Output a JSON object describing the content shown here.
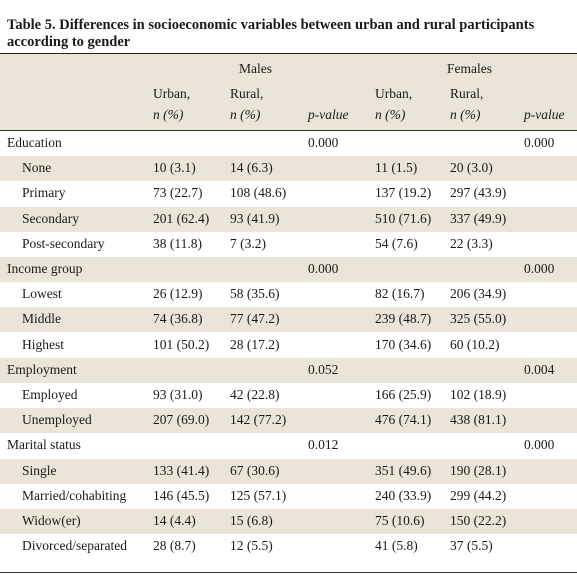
{
  "title": "Table 5. Differences in socioeconomic variables between urban and rural participants according to gender",
  "header": {
    "groups": [
      "Males",
      "Females"
    ],
    "urban": "Urban,",
    "rural": "Rural,",
    "n_pct": "n (%)",
    "pvalue": "p-value"
  },
  "sections": [
    {
      "label": "Education",
      "p_male": "0.000",
      "p_female": "0.000",
      "rows": [
        {
          "label": "None",
          "m_urban": "10 (3.1)",
          "m_rural": "14 (6.3)",
          "f_urban": "11 (1.5)",
          "f_rural": "20 (3.0)"
        },
        {
          "label": "Primary",
          "m_urban": "73 (22.7)",
          "m_rural": "108 (48.6)",
          "f_urban": "137 (19.2)",
          "f_rural": "297 (43.9)"
        },
        {
          "label": "Secondary",
          "m_urban": "201 (62.4)",
          "m_rural": "93 (41.9)",
          "f_urban": "510 (71.6)",
          "f_rural": "337 (49.9)"
        },
        {
          "label": "Post-secondary",
          "m_urban": "38 (11.8)",
          "m_rural": "7 (3.2)",
          "f_urban": "54 (7.6)",
          "f_rural": "22 (3.3)"
        }
      ]
    },
    {
      "label": "Income group",
      "p_male": "0.000",
      "p_female": "0.000",
      "rows": [
        {
          "label": "Lowest",
          "m_urban": "26 (12.9)",
          "m_rural": "58 (35.6)",
          "f_urban": "82 (16.7)",
          "f_rural": "206 (34.9)"
        },
        {
          "label": "Middle",
          "m_urban": "74 (36.8)",
          "m_rural": "77 (47.2)",
          "f_urban": "239 (48.7)",
          "f_rural": "325 (55.0)"
        },
        {
          "label": "Highest",
          "m_urban": "101 (50.2)",
          "m_rural": "28 (17.2)",
          "f_urban": "170 (34.6)",
          "f_rural": "60 (10.2)"
        }
      ]
    },
    {
      "label": "Employment",
      "p_male": "0.052",
      "p_female": "0.004",
      "rows": [
        {
          "label": "Employed",
          "m_urban": "93 (31.0)",
          "m_rural": "42 (22.8)",
          "f_urban": "166 (25.9)",
          "f_rural": "102 (18.9)"
        },
        {
          "label": "Unemployed",
          "m_urban": "207 (69.0)",
          "m_rural": "142 (77.2)",
          "f_urban": "476 (74.1)",
          "f_rural": "438 (81.1)"
        }
      ]
    },
    {
      "label": "Marital status",
      "p_male": "0.012",
      "p_female": "0.000",
      "rows": [
        {
          "label": "Single",
          "m_urban": "133 (41.4)",
          "m_rural": "67 (30.6)",
          "f_urban": "351 (49.6)",
          "f_rural": "190 (28.1)"
        },
        {
          "label": "Married/cohabiting",
          "m_urban": "146 (45.5)",
          "m_rural": "125 (57.1)",
          "f_urban": "240 (33.9)",
          "f_rural": "299 (44.2)"
        },
        {
          "label": "Widow(er)",
          "m_urban": "14 (4.4)",
          "m_rural": "15 (6.8)",
          "f_urban": "75 (10.6)",
          "f_rural": "150 (22.2)"
        },
        {
          "label": "Divorced/separated",
          "m_urban": "28 (8.7)",
          "m_rural": "12 (5.5)",
          "f_urban": "41 (5.8)",
          "f_rural": "37 (5.5)"
        }
      ]
    }
  ]
}
